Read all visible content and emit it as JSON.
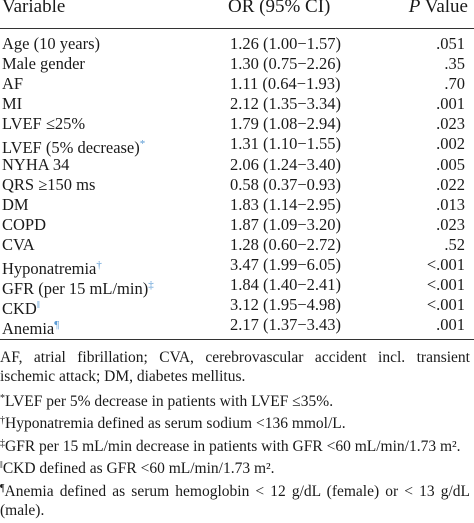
{
  "table": {
    "headers": {
      "variable": "Variable",
      "or": "OR (95% CI)",
      "p_label": "P",
      "p_suffix": " Value"
    },
    "rows": [
      {
        "var": "Age (10 years)",
        "mark": "",
        "or": "1.26 (1.00−1.57)",
        "p": ".051"
      },
      {
        "var": "Male gender",
        "mark": "",
        "or": "1.30 (0.75−2.26)",
        "p": ".35"
      },
      {
        "var": "AF",
        "mark": "",
        "or": "1.11 (0.64−1.93)",
        "p": ".70"
      },
      {
        "var": "MI",
        "mark": "",
        "or": "2.12 (1.35−3.34)",
        "p": ".001"
      },
      {
        "var": "LVEF ≤25%",
        "mark": "",
        "or": "1.79 (1.08−2.94)",
        "p": ".023"
      },
      {
        "var": "LVEF (5% decrease)",
        "mark": "*",
        "or": "1.31 (1.10−1.55)",
        "p": ".002"
      },
      {
        "var": "NYHA 34",
        "mark": "",
        "or": "2.06 (1.24−3.40)",
        "p": ".005"
      },
      {
        "var": "QRS ≥150 ms",
        "mark": "",
        "or": "0.58 (0.37−0.93)",
        "p": ".022"
      },
      {
        "var": "DM",
        "mark": "",
        "or": "1.83 (1.14−2.95)",
        "p": ".013"
      },
      {
        "var": "COPD",
        "mark": "",
        "or": "1.87 (1.09−3.20)",
        "p": ".023"
      },
      {
        "var": "CVA",
        "mark": "",
        "or": "1.28 (0.60−2.72)",
        "p": ".52"
      },
      {
        "var": "Hyponatremia",
        "mark": "†",
        "or": "3.47 (1.99−6.05)",
        "p": "<.001"
      },
      {
        "var": "GFR (per 15 mL/min)",
        "mark": "‡",
        "or": "1.84 (1.40−2.41)",
        "p": "<.001"
      },
      {
        "var": "CKD",
        "mark": "‖",
        "or": "3.12 (1.95−4.98)",
        "p": "<.001"
      },
      {
        "var": "Anemia",
        "mark": "¶",
        "or": "2.17 (1.37−3.43)",
        "p": ".001"
      }
    ]
  },
  "footnotes": {
    "abbrev": "AF, atrial fibrillation; CVA, cerebrovascular accident incl. transient ischemic attack; DM, diabetes mellitus.",
    "n1": {
      "mark": "*",
      "text": "LVEF per 5% decrease in patients with LVEF ≤35%."
    },
    "n2": {
      "mark": "†",
      "text": "Hyponatremia defined as serum sodium <136 mmol/L."
    },
    "n3": {
      "mark": "‡",
      "text": "GFR per 15 mL/min decrease in patients with GFR <60 mL/min/1.73 m²."
    },
    "n4": {
      "mark": "‖",
      "text": "CKD defined as GFR <60 mL/min/1.73 m²."
    },
    "n5": {
      "mark": "¶",
      "text": "Anemia defined as serum hemoglobin < 12 g/dL (female) or < 13 g/dL (male)."
    }
  },
  "colors": {
    "footnote_mark": "#5b9bd5",
    "rule": "#333333"
  }
}
